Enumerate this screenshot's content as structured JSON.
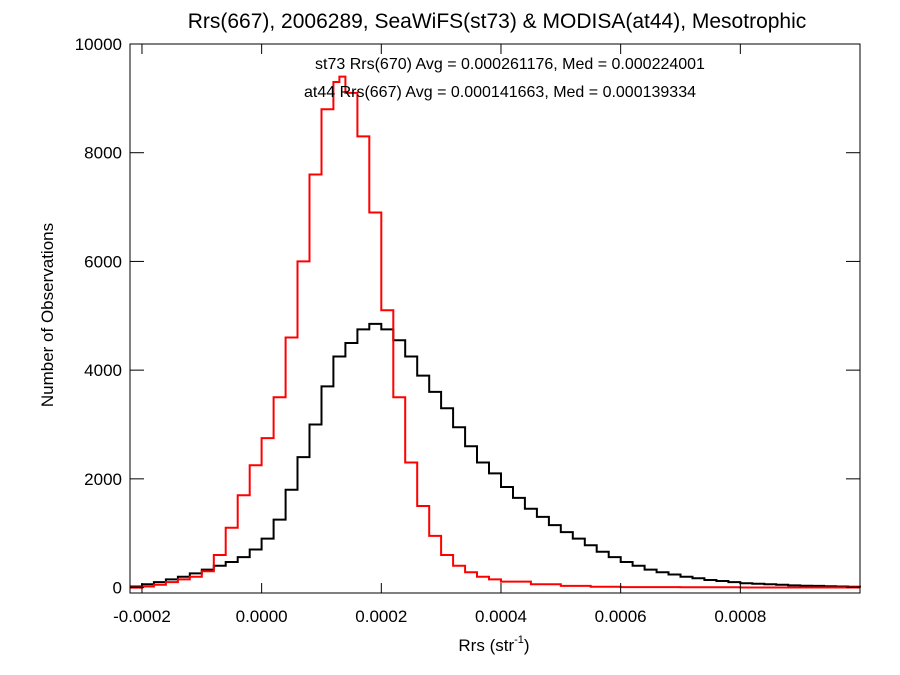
{
  "chart_data": {
    "type": "histogram",
    "title": "Rrs(667), 2006289, SeaWiFS(st73) & MODISA(at44), Mesotrophic",
    "xlabel": {
      "base": "Rrs (str",
      "sup": "-1",
      "close": ")"
    },
    "ylabel": "Number of Observations",
    "xlim": [
      -0.00022,
      0.001
    ],
    "ylim": [
      -100,
      10000
    ],
    "xticks": [
      -0.0002,
      0,
      0.0002,
      0.0004,
      0.0006,
      0.0008
    ],
    "xtick_labels": [
      "-0.0002",
      "0.0000",
      "0.0002",
      "0.0004",
      "0.0006",
      "0.0008"
    ],
    "yticks": [
      0,
      2000,
      4000,
      6000,
      8000,
      10000
    ],
    "ytick_labels": [
      "0",
      "2000",
      "4000",
      "6000",
      "8000",
      "10000"
    ],
    "legend": [
      {
        "text": "st73 Rrs(670) Avg = 0.000261176, Med = 0.000224001",
        "color": "#000000"
      },
      {
        "text": "at44 Rrs(667) Avg = 0.000141663, Med = 0.000139334",
        "color": "#ff0000"
      }
    ],
    "series": [
      {
        "color": "#000000",
        "x": [
          -0.00022,
          -0.0002,
          -0.00018,
          -0.00016,
          -0.00014,
          -0.00012,
          -0.0001,
          -8e-05,
          -6e-05,
          -4e-05,
          -2e-05,
          0,
          2e-05,
          4e-05,
          6e-05,
          8e-05,
          0.0001,
          0.00012,
          0.00014,
          0.00016,
          0.00018,
          0.0002,
          0.00022,
          0.00024,
          0.00026,
          0.00028,
          0.0003,
          0.00032,
          0.00034,
          0.00036,
          0.00038,
          0.0004,
          0.00042,
          0.00044,
          0.00046,
          0.00048,
          0.0005,
          0.00052,
          0.00054,
          0.00056,
          0.00058,
          0.0006,
          0.00062,
          0.00064,
          0.00066,
          0.00068,
          0.0007,
          0.00072,
          0.00074,
          0.00076,
          0.00078,
          0.0008,
          0.00082,
          0.00084,
          0.00086,
          0.00088,
          0.0009,
          0.00092,
          0.00094,
          0.00096,
          0.00098,
          0.001
        ],
        "y": [
          20,
          60,
          100,
          150,
          200,
          260,
          330,
          400,
          470,
          560,
          700,
          900,
          1250,
          1800,
          2400,
          3000,
          3700,
          4250,
          4500,
          4750,
          4850,
          4750,
          4550,
          4250,
          3900,
          3600,
          3300,
          2950,
          2600,
          2300,
          2100,
          1850,
          1650,
          1450,
          1300,
          1150,
          1020,
          900,
          780,
          660,
          560,
          470,
          400,
          330,
          280,
          240,
          200,
          170,
          140,
          120,
          100,
          80,
          70,
          60,
          50,
          40,
          35,
          30,
          25,
          20,
          15,
          10
        ]
      },
      {
        "color": "#ff0000",
        "x": [
          -0.00022,
          -0.0002,
          -0.00018,
          -0.00016,
          -0.00014,
          -0.00012,
          -0.0001,
          -8e-05,
          -6e-05,
          -4e-05,
          -2e-05,
          0,
          2e-05,
          4e-05,
          6e-05,
          8e-05,
          0.0001,
          0.00012,
          0.00013,
          0.00014,
          0.00016,
          0.00018,
          0.0002,
          0.00022,
          0.00024,
          0.00026,
          0.00028,
          0.0003,
          0.00032,
          0.00034,
          0.00036,
          0.00038,
          0.0004,
          0.00045,
          0.0005,
          0.00055,
          0.0006,
          0.0007,
          0.0008,
          0.0009,
          0.001
        ],
        "y": [
          0,
          20,
          50,
          100,
          150,
          200,
          300,
          600,
          1100,
          1700,
          2250,
          2750,
          3500,
          4600,
          6000,
          7600,
          8800,
          9300,
          9400,
          9100,
          8300,
          6900,
          5100,
          3500,
          2300,
          1500,
          950,
          600,
          400,
          280,
          200,
          150,
          110,
          60,
          30,
          15,
          8,
          4,
          2,
          1,
          0
        ]
      }
    ]
  }
}
